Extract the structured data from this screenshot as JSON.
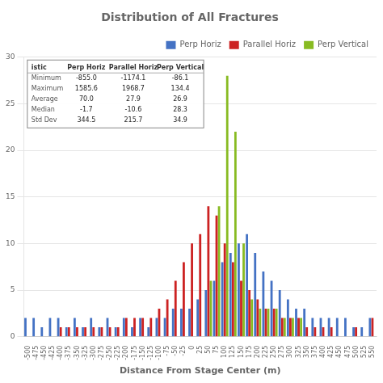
{
  "chart_data": {
    "type": "bar",
    "title": "Distribution of All Fractures",
    "xlabel": "Distance From Stage Center (m)",
    "categories": [
      "-500",
      "-475",
      "-450",
      "-425",
      "-400",
      "-375",
      "-350",
      "-325",
      "-300",
      "-275",
      "-250",
      "-225",
      "-200",
      "-175",
      "-150",
      "-125",
      "-100",
      "-75",
      "-50",
      "-25",
      "0",
      "25",
      "50",
      "75",
      "100",
      "125",
      "150",
      "175",
      "200",
      "225",
      "250",
      "275",
      "300",
      "325",
      "350",
      "375",
      "400",
      "425",
      "450",
      "475",
      "500",
      "525",
      "550"
    ],
    "series": [
      {
        "name": "Perp Horiz",
        "color": "#4472c4",
        "values": [
          2,
          2,
          1,
          2,
          2,
          1,
          2,
          1,
          2,
          1,
          2,
          1,
          2,
          1,
          2,
          1,
          2,
          2,
          3,
          3,
          3,
          4,
          5,
          6,
          8,
          9,
          10,
          11,
          9,
          7,
          6,
          5,
          4,
          3,
          3,
          2,
          2,
          2,
          2,
          2,
          1,
          1,
          2
        ]
      },
      {
        "name": "Parallel Horiz",
        "color": "#cc2222",
        "values": [
          0,
          0,
          0,
          0,
          1,
          1,
          1,
          1,
          1,
          1,
          1,
          1,
          2,
          2,
          2,
          2,
          3,
          4,
          6,
          8,
          10,
          11,
          14,
          13,
          10,
          8,
          6,
          5,
          4,
          3,
          3,
          2,
          2,
          2,
          1,
          1,
          1,
          1,
          0,
          0,
          1,
          0,
          2
        ]
      },
      {
        "name": "Perp Vertical",
        "color": "#88bb22",
        "values": [
          0,
          0,
          0,
          0,
          0,
          0,
          0,
          0,
          0,
          0,
          0,
          0,
          0,
          0,
          0,
          0,
          0,
          0,
          0,
          0,
          0,
          0,
          6,
          14,
          28,
          22,
          10,
          4,
          3,
          3,
          3,
          2,
          2,
          2,
          0,
          0,
          0,
          0,
          0,
          0,
          0,
          0,
          0
        ]
      }
    ],
    "ylim": [
      0,
      30
    ],
    "yticks": [
      0,
      5,
      10,
      15,
      20,
      25,
      30
    ],
    "grid": true,
    "legend": "upper right",
    "table": {
      "row_header": "istic",
      "headers": [
        "Perp Horiz",
        "Parallel Horiz",
        "Perp Vertical"
      ],
      "rows": [
        [
          "Minimum",
          "-855.0",
          "-1174.1",
          "-86.1"
        ],
        [
          "Maximum",
          "1585.6",
          "1968.7",
          "134.4"
        ],
        [
          "Average",
          "70.0",
          "27.9",
          "26.9"
        ],
        [
          "Median",
          "-1.7",
          "-10.6",
          "28.3"
        ],
        [
          "Std Dev",
          "344.5",
          "215.7",
          "34.9"
        ]
      ]
    }
  }
}
